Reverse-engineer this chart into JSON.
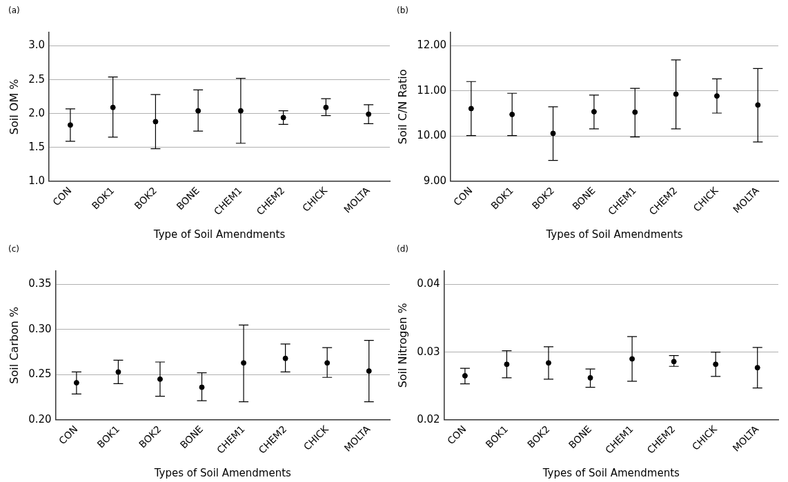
{
  "chart_data": [
    {
      "type": "scatter",
      "annotations": [
        "(a)"
      ],
      "xlabel": "Type of Soil Amendments",
      "ylabel": "Soil OM %",
      "categories": [
        "CON",
        "BOK1",
        "BOK2",
        "BONE",
        "CHEM1",
        "CHEM2",
        "CHICK",
        "MOLTA"
      ],
      "color": "#000000",
      "marker": "circle",
      "grid": "y",
      "values": [
        1.83,
        2.09,
        1.88,
        2.04,
        2.04,
        1.94,
        2.09,
        1.99
      ],
      "errors": [
        [
          1.59,
          2.07
        ],
        [
          1.65,
          2.54
        ],
        [
          1.48,
          2.28
        ],
        [
          1.74,
          2.35
        ],
        [
          1.56,
          2.52
        ],
        [
          1.84,
          2.04
        ],
        [
          1.97,
          2.22
        ],
        [
          1.85,
          2.13
        ]
      ],
      "ylim": [
        1,
        3.2
      ],
      "yticks": [
        {
          "value": 1,
          "label": "1.0"
        },
        1.5,
        {
          "value": 2,
          "label": "2.0"
        },
        2.5,
        {
          "value": 3,
          "label": "3.0"
        }
      ]
    },
    {
      "type": "scatter",
      "annotations": [
        "(b)"
      ],
      "xlabel": "Types of Soil Amendments",
      "ylabel": "Soil C/N Ratio",
      "categories": [
        "CON",
        "BOK1",
        "BOK2",
        "BONE",
        "CHEM1",
        "CHEM2",
        "CHICK",
        "MOLTA"
      ],
      "color": "#000000",
      "marker": "circle",
      "grid": "y",
      "values": [
        10.61,
        10.48,
        10.06,
        10.54,
        10.53,
        10.93,
        10.89,
        10.69
      ],
      "errors": [
        [
          10.01,
          11.21
        ],
        [
          10.01,
          10.95
        ],
        [
          9.46,
          10.65
        ],
        [
          10.16,
          10.91
        ],
        [
          9.98,
          11.06
        ],
        [
          10.16,
          11.69
        ],
        [
          10.51,
          11.27
        ],
        [
          9.87,
          11.5
        ]
      ],
      "ylim": [
        9,
        12.3
      ],
      "yticks": [
        {
          "value": 9,
          "label": "9.00"
        },
        {
          "value": 10,
          "label": "10.00"
        },
        {
          "value": 11,
          "label": "11.00"
        },
        {
          "value": 12,
          "label": "12.00"
        }
      ]
    },
    {
      "type": "scatter",
      "annotations": [
        "(c)"
      ],
      "xlabel": "Types of Soil Amendments",
      "ylabel": "Soil Carbon %",
      "categories": [
        "CON",
        "BOK1",
        "BOK2",
        "BONE",
        "CHEM1",
        "CHEM2",
        "CHICK",
        "MOLTA"
      ],
      "color": "#000000",
      "marker": "circle",
      "grid": "y",
      "values": [
        0.241,
        0.253,
        0.245,
        0.236,
        0.263,
        0.268,
        0.263,
        0.254
      ],
      "errors": [
        [
          0.2285,
          0.253
        ],
        [
          0.24,
          0.266
        ],
        [
          0.226,
          0.264
        ],
        [
          0.221,
          0.252
        ],
        [
          0.22,
          0.305
        ],
        [
          0.253,
          0.284
        ],
        [
          0.247,
          0.28
        ],
        [
          0.22,
          0.288
        ]
      ],
      "ylim": [
        0.2,
        0.365
      ],
      "yticks": [
        {
          "value": 0.2,
          "label": "0.20"
        },
        0.25,
        {
          "value": 0.3,
          "label": "0.30"
        },
        0.35
      ]
    },
    {
      "type": "scatter",
      "annotations": [
        "(d)"
      ],
      "xlabel": "Types of Soil Amendments",
      "ylabel": "Soil Nitrogen %",
      "categories": [
        "CON",
        "BOK1",
        "BOK2",
        "BONE",
        "CHEM1",
        "CHEM2",
        "CHICK",
        "MOLTA"
      ],
      "color": "#000000",
      "marker": "circle",
      "grid": "y",
      "values": [
        0.0265,
        0.0282,
        0.0284,
        0.0262,
        0.029,
        0.0286,
        0.0282,
        0.0277
      ],
      "errors": [
        [
          0.0253,
          0.0276
        ],
        [
          0.0262,
          0.0302
        ],
        [
          0.026,
          0.0308
        ],
        [
          0.0248,
          0.0275
        ],
        [
          0.0257,
          0.0323
        ],
        [
          0.0279,
          0.0295
        ],
        [
          0.0264,
          0.03
        ],
        [
          0.0247,
          0.0307
        ]
      ],
      "ylim": [
        0.02,
        0.042
      ],
      "yticks": [
        0.02,
        0.03,
        0.04
      ]
    }
  ]
}
